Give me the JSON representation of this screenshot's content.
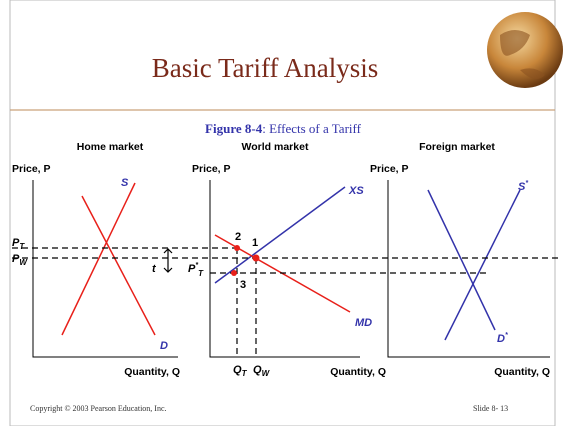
{
  "title": "Basic Tariff Analysis",
  "subtitle": {
    "figure": "Figure 8-4",
    "caption": ": Effects of a Tariff"
  },
  "panels": [
    {
      "title": "Home market",
      "y_axis": "Price, P",
      "x_axis": "Quantity, Q",
      "curves": [
        {
          "text": "S"
        },
        {
          "text": "D"
        }
      ]
    },
    {
      "title": "World market",
      "y_axis": "Price, P",
      "x_axis": "Quantity, Q",
      "curves": [
        {
          "text": "XS"
        },
        {
          "text": "MD"
        }
      ]
    },
    {
      "title": "Foreign market",
      "y_axis": "Price, P",
      "x_axis": "Quantity, Q",
      "curves": [
        {
          "text": "S",
          "sup": "*"
        },
        {
          "text": "D",
          "sup": "*"
        }
      ]
    }
  ],
  "price_labels": {
    "p_t": {
      "text": "P",
      "sub": "T"
    },
    "p_w": {
      "text": "P",
      "sub": "W"
    },
    "p_star_t": {
      "text": "P",
      "sup": "*",
      "sub": "T"
    },
    "t": "t"
  },
  "quantity_labels": {
    "q_t": {
      "text": "Q",
      "sub": "T"
    },
    "q_w": {
      "text": "Q",
      "sub": "W"
    }
  },
  "points": [
    "1",
    "2",
    "3"
  ],
  "footer": {
    "copyright": "Copyright © 2003 Pearson Education, Inc.",
    "slide": "Slide 8- 13"
  }
}
